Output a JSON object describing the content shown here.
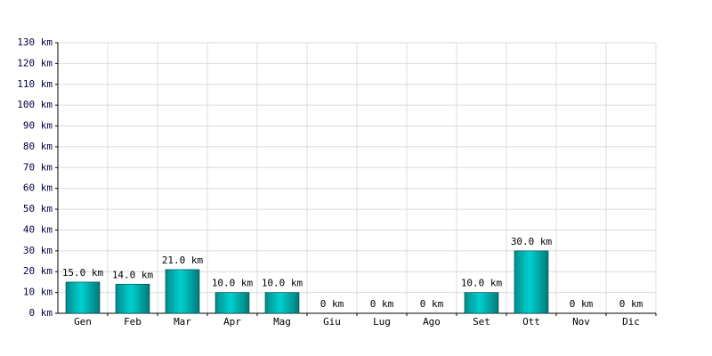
{
  "chart_data": {
    "type": "bar",
    "categories": [
      "Gen",
      "Feb",
      "Mar",
      "Apr",
      "Mag",
      "Giu",
      "Lug",
      "Ago",
      "Set",
      "Ott",
      "Nov",
      "Dic"
    ],
    "values": [
      15,
      14,
      21,
      10,
      10,
      0,
      0,
      0,
      10,
      30,
      0,
      0
    ],
    "value_labels": [
      "15.0 km",
      "14.0 km",
      "21.0 km",
      "10.0 km",
      "10.0 km",
      "0 km",
      "0 km",
      "0 km",
      "10.0 km",
      "30.0 km",
      "0 km",
      "0 km"
    ],
    "color": "#00d0d0",
    "ylim": [
      0,
      130
    ],
    "yticks": [
      {
        "value": 0,
        "label": "0 km"
      },
      {
        "value": 10,
        "label": "10 km"
      },
      {
        "value": 20,
        "label": "20 km"
      },
      {
        "value": 30,
        "label": "30 km"
      },
      {
        "value": 40,
        "label": "40 km"
      },
      {
        "value": 50,
        "label": "50 km"
      },
      {
        "value": 60,
        "label": "60 km"
      },
      {
        "value": 70,
        "label": "70 km"
      },
      {
        "value": 80,
        "label": "80 km"
      },
      {
        "value": 90,
        "label": "90 km"
      },
      {
        "value": 100,
        "label": "100 km"
      },
      {
        "value": 110,
        "label": "110 km"
      },
      {
        "value": 120,
        "label": "120 km"
      },
      {
        "value": 130,
        "label": "130 km"
      }
    ],
    "grid": true
  }
}
